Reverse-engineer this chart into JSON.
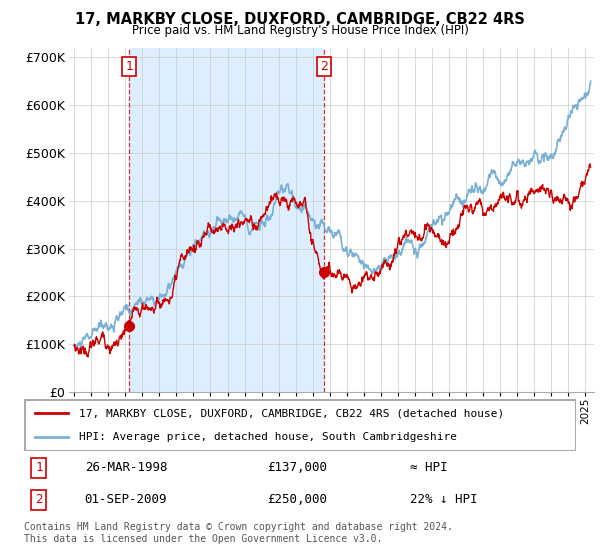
{
  "title1": "17, MARKBY CLOSE, DUXFORD, CAMBRIDGE, CB22 4RS",
  "title2": "Price paid vs. HM Land Registry's House Price Index (HPI)",
  "legend_line1": "17, MARKBY CLOSE, DUXFORD, CAMBRIDGE, CB22 4RS (detached house)",
  "legend_line2": "HPI: Average price, detached house, South Cambridgeshire",
  "footnote": "Contains HM Land Registry data © Crown copyright and database right 2024.\nThis data is licensed under the Open Government Licence v3.0.",
  "transaction1_date": "26-MAR-1998",
  "transaction1_price": "£137,000",
  "transaction1_hpi": "≈ HPI",
  "transaction2_date": "01-SEP-2009",
  "transaction2_price": "£250,000",
  "transaction2_hpi": "22% ↓ HPI",
  "marker1_x": 1998.23,
  "marker1_y": 137000,
  "marker2_x": 2009.67,
  "marker2_y": 250000,
  "price_line_color": "#cc0000",
  "hpi_line_color": "#7ab0d4",
  "shade_color": "#ddeeff",
  "background_color": "#ffffff",
  "grid_color": "#cccccc",
  "marker_box_color": "#cc0000",
  "ylim": [
    0,
    720000
  ],
  "yticks": [
    0,
    100000,
    200000,
    300000,
    400000,
    500000,
    600000,
    700000
  ],
  "ytick_labels": [
    "£0",
    "£100K",
    "£200K",
    "£300K",
    "£400K",
    "£500K",
    "£600K",
    "£700K"
  ],
  "xmin": 1994.7,
  "xmax": 2025.5
}
